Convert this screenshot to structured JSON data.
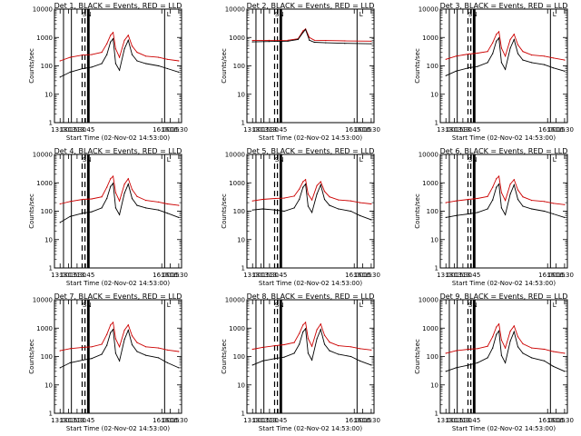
{
  "figure": {
    "background": "#ffffff",
    "axis_color": "#000000"
  },
  "chart_data": [
    {
      "type": "line",
      "panel": "det1",
      "title": "Det 1, BLACK = Events, RED = LLD",
      "xlabel": "Start Time (02-Nov-02 14:53:00)",
      "ylabel": "Counts/sec",
      "x_tick_labels": [
        "13:00",
        "13:15",
        "13:30",
        "13:45",
        "16:00",
        "16:15",
        "16:30"
      ],
      "y_tick_labels": [
        "1",
        "10",
        "100",
        "1000",
        "10000"
      ],
      "y_scale": "log",
      "ylim": [
        1,
        10000
      ],
      "markers": [
        "S",
        "N",
        "L"
      ],
      "series": [
        {
          "color": "#cc0000",
          "x": [
            "14:57",
            "15:05",
            "15:15",
            "15:22",
            "15:30",
            "15:34",
            "15:37",
            "15:39",
            "15:41",
            "15:44",
            "15:48",
            "15:51",
            "15:54",
            "15:58",
            "16:05",
            "16:15",
            "16:22",
            "16:31"
          ],
          "values": [
            150,
            200,
            240,
            250,
            300,
            600,
            1200,
            1500,
            400,
            200,
            800,
            1200,
            500,
            300,
            220,
            200,
            170,
            150
          ]
        },
        {
          "color": "#000000",
          "x": [
            "14:57",
            "15:05",
            "15:15",
            "15:22",
            "15:30",
            "15:34",
            "15:37",
            "15:39",
            "15:41",
            "15:44",
            "15:48",
            "15:51",
            "15:54",
            "15:58",
            "16:05",
            "16:15",
            "16:22",
            "16:31"
          ],
          "values": [
            40,
            60,
            80,
            90,
            120,
            250,
            700,
            900,
            120,
            70,
            400,
            800,
            250,
            150,
            120,
            100,
            80,
            60
          ]
        }
      ]
    },
    {
      "type": "line",
      "panel": "det2",
      "title": "Det 2, BLACK = Events, RED = LLD",
      "xlabel": "Start Time (02-Nov-02 14:53:00)",
      "ylabel": "Counts/sec",
      "x_tick_labels": [
        "13:00",
        "13:15",
        "13:30",
        "13:45",
        "16:00",
        "16:15",
        "16:30"
      ],
      "y_tick_labels": [
        "1",
        "10",
        "100",
        "1000",
        "10000"
      ],
      "y_scale": "log",
      "ylim": [
        1,
        10000
      ],
      "markers": [
        "S",
        "N",
        "L"
      ],
      "series": [
        {
          "color": "#cc0000",
          "x": [
            "14:57",
            "15:10",
            "15:25",
            "15:33",
            "15:37",
            "15:39",
            "15:42",
            "15:46",
            "15:55",
            "16:10",
            "16:31"
          ],
          "values": [
            780,
            790,
            800,
            900,
            1700,
            2000,
            1000,
            800,
            780,
            760,
            740
          ]
        },
        {
          "color": "#000000",
          "x": [
            "14:57",
            "15:10",
            "15:25",
            "15:33",
            "15:37",
            "15:39",
            "15:42",
            "15:46",
            "15:55",
            "16:10",
            "16:31"
          ],
          "values": [
            700,
            720,
            740,
            850,
            1500,
            1900,
            800,
            680,
            650,
            620,
            600
          ]
        }
      ]
    },
    {
      "type": "line",
      "panel": "det3",
      "title": "Det 3, BLACK = Events, RED = LLD",
      "xlabel": "Start Time (02-Nov-02 14:53:00)",
      "ylabel": "Counts/sec",
      "x_tick_labels": [
        "13:00",
        "13:15",
        "13:30",
        "13:45",
        "16:00",
        "16:15",
        "16:30"
      ],
      "y_tick_labels": [
        "1",
        "10",
        "100",
        "1000",
        "10000"
      ],
      "y_scale": "log",
      "ylim": [
        1,
        10000
      ],
      "markers": [
        "S",
        "N",
        "L"
      ],
      "series": [
        {
          "color": "#cc0000",
          "x": [
            "14:57",
            "15:05",
            "15:15",
            "15:22",
            "15:30",
            "15:34",
            "15:37",
            "15:39",
            "15:41",
            "15:44",
            "15:48",
            "15:51",
            "15:54",
            "15:58",
            "16:05",
            "16:15",
            "16:22",
            "16:31"
          ],
          "values": [
            170,
            220,
            260,
            280,
            320,
            650,
            1300,
            1600,
            420,
            220,
            850,
            1300,
            550,
            320,
            240,
            220,
            190,
            160
          ]
        },
        {
          "color": "#000000",
          "x": [
            "14:57",
            "15:05",
            "15:15",
            "15:22",
            "15:30",
            "15:34",
            "15:37",
            "15:39",
            "15:41",
            "15:44",
            "15:48",
            "15:51",
            "15:54",
            "15:58",
            "16:05",
            "16:15",
            "16:22",
            "16:31"
          ],
          "values": [
            45,
            65,
            85,
            95,
            130,
            270,
            750,
            950,
            130,
            75,
            420,
            850,
            270,
            160,
            130,
            110,
            85,
            65
          ]
        }
      ]
    },
    {
      "type": "line",
      "panel": "det4",
      "title": "Det 4, BLACK = Events, RED = LLD",
      "xlabel": "Start Time (02-Nov-02 14:53:00)",
      "ylabel": "Counts/sec",
      "x_tick_labels": [
        "13:00",
        "13:15",
        "13:30",
        "13:45",
        "16:00",
        "16:15",
        "16:30"
      ],
      "y_tick_labels": [
        "1",
        "10",
        "100",
        "1000",
        "10000"
      ],
      "y_scale": "log",
      "ylim": [
        1,
        10000
      ],
      "markers": [
        "S",
        "N",
        "L"
      ],
      "series": [
        {
          "color": "#cc0000",
          "x": [
            "14:57",
            "15:05",
            "15:15",
            "15:22",
            "15:30",
            "15:34",
            "15:37",
            "15:39",
            "15:41",
            "15:44",
            "15:48",
            "15:51",
            "15:54",
            "15:58",
            "16:05",
            "16:15",
            "16:22",
            "16:31"
          ],
          "values": [
            180,
            220,
            260,
            270,
            320,
            700,
            1400,
            1700,
            450,
            230,
            900,
            1400,
            580,
            330,
            240,
            210,
            180,
            160
          ]
        },
        {
          "color": "#000000",
          "x": [
            "14:57",
            "15:05",
            "15:15",
            "15:22",
            "15:30",
            "15:34",
            "15:37",
            "15:39",
            "15:41",
            "15:44",
            "15:48",
            "15:51",
            "15:54",
            "15:58",
            "16:05",
            "16:15",
            "16:22",
            "16:31"
          ],
          "values": [
            40,
            65,
            85,
            95,
            130,
            280,
            750,
            950,
            130,
            75,
            430,
            900,
            280,
            160,
            130,
            110,
            85,
            60
          ]
        }
      ]
    },
    {
      "type": "line",
      "panel": "det5",
      "title": "Det 5, BLACK = Events, RED = LLD",
      "xlabel": "Start Time (02-Nov-02 14:53:00)",
      "ylabel": "Counts/sec",
      "x_tick_labels": [
        "13:00",
        "13:15",
        "13:30",
        "13:45",
        "16:00",
        "16:15",
        "16:30"
      ],
      "y_tick_labels": [
        "1",
        "10",
        "100",
        "1000",
        "10000"
      ],
      "y_scale": "log",
      "ylim": [
        1,
        10000
      ],
      "markers": [
        "S",
        "N",
        "L"
      ],
      "series": [
        {
          "color": "#cc0000",
          "x": [
            "14:57",
            "15:05",
            "15:15",
            "15:22",
            "15:30",
            "15:34",
            "15:37",
            "15:39",
            "15:41",
            "15:44",
            "15:48",
            "15:51",
            "15:54",
            "15:58",
            "16:05",
            "16:15",
            "16:22",
            "16:31"
          ],
          "values": [
            230,
            260,
            280,
            290,
            340,
            600,
            1100,
            1300,
            400,
            250,
            800,
            1100,
            500,
            320,
            250,
            230,
            200,
            180
          ]
        },
        {
          "color": "#000000",
          "x": [
            "14:57",
            "15:05",
            "15:15",
            "15:22",
            "15:30",
            "15:34",
            "15:37",
            "15:39",
            "15:41",
            "15:44",
            "15:48",
            "15:51",
            "15:54",
            "15:58",
            "16:05",
            "16:15",
            "16:22",
            "16:31"
          ],
          "values": [
            110,
            120,
            110,
            100,
            130,
            260,
            700,
            900,
            150,
            90,
            400,
            850,
            260,
            160,
            120,
            100,
            70,
            50
          ]
        }
      ]
    },
    {
      "type": "line",
      "panel": "det6",
      "title": "Det 6, BLACK = Events, RED = LLD",
      "xlabel": "Start Time (02-Nov-02 14:53:00)",
      "ylabel": "Counts/sec",
      "x_tick_labels": [
        "13:00",
        "13:15",
        "13:30",
        "13:45",
        "16:00",
        "16:15",
        "16:30"
      ],
      "y_tick_labels": [
        "1",
        "10",
        "100",
        "1000",
        "10000"
      ],
      "y_scale": "log",
      "ylim": [
        1,
        10000
      ],
      "markers": [
        "S",
        "N",
        "L"
      ],
      "series": [
        {
          "color": "#cc0000",
          "x": [
            "14:57",
            "15:05",
            "15:15",
            "15:22",
            "15:30",
            "15:34",
            "15:37",
            "15:39",
            "15:41",
            "15:44",
            "15:48",
            "15:51",
            "15:54",
            "15:58",
            "16:05",
            "16:15",
            "16:22",
            "16:31"
          ],
          "values": [
            200,
            230,
            260,
            280,
            330,
            700,
            1400,
            1700,
            450,
            240,
            900,
            1300,
            560,
            320,
            240,
            220,
            190,
            170
          ]
        },
        {
          "color": "#000000",
          "x": [
            "14:57",
            "15:05",
            "15:15",
            "15:22",
            "15:30",
            "15:34",
            "15:37",
            "15:39",
            "15:41",
            "15:44",
            "15:48",
            "15:51",
            "15:54",
            "15:58",
            "16:05",
            "16:15",
            "16:22",
            "16:31"
          ],
          "values": [
            60,
            70,
            80,
            90,
            120,
            250,
            700,
            900,
            130,
            75,
            400,
            850,
            260,
            150,
            120,
            100,
            80,
            60
          ]
        }
      ]
    },
    {
      "type": "line",
      "panel": "det7",
      "title": "Det 7, BLACK = Events, RED = LLD",
      "xlabel": "Start Time (02-Nov-02 14:53:00)",
      "ylabel": "Counts/sec",
      "x_tick_labels": [
        "13:00",
        "13:15",
        "13:30",
        "13:45",
        "16:00",
        "16:15",
        "16:30"
      ],
      "y_tick_labels": [
        "1",
        "10",
        "100",
        "1000",
        "10000"
      ],
      "y_scale": "log",
      "ylim": [
        1,
        10000
      ],
      "markers": [
        "S",
        "N",
        "L"
      ],
      "series": [
        {
          "color": "#cc0000",
          "x": [
            "14:57",
            "15:05",
            "15:15",
            "15:22",
            "15:30",
            "15:34",
            "15:37",
            "15:39",
            "15:41",
            "15:44",
            "15:48",
            "15:51",
            "15:54",
            "15:58",
            "16:05",
            "16:15",
            "16:22",
            "16:31"
          ],
          "values": [
            160,
            190,
            210,
            220,
            270,
            600,
            1300,
            1600,
            420,
            220,
            850,
            1300,
            540,
            310,
            220,
            200,
            170,
            150
          ]
        },
        {
          "color": "#000000",
          "x": [
            "14:57",
            "15:05",
            "15:15",
            "15:22",
            "15:30",
            "15:34",
            "15:37",
            "15:39",
            "15:41",
            "15:44",
            "15:48",
            "15:51",
            "15:54",
            "15:58",
            "16:05",
            "16:15",
            "16:22",
            "16:31"
          ],
          "values": [
            40,
            60,
            75,
            85,
            120,
            250,
            700,
            900,
            130,
            70,
            400,
            850,
            260,
            150,
            110,
            90,
            60,
            40
          ]
        }
      ]
    },
    {
      "type": "line",
      "panel": "det8",
      "title": "Det 8, BLACK = Events, RED = LLD",
      "xlabel": "Start Time (02-Nov-02 14:53:00)",
      "ylabel": "Counts/sec",
      "x_tick_labels": [
        "13:00",
        "13:15",
        "13:30",
        "13:45",
        "16:00",
        "16:15",
        "16:30"
      ],
      "y_tick_labels": [
        "1",
        "10",
        "100",
        "1000",
        "10000"
      ],
      "y_scale": "log",
      "ylim": [
        1,
        10000
      ],
      "markers": [
        "S",
        "N",
        "L"
      ],
      "series": [
        {
          "color": "#cc0000",
          "x": [
            "14:57",
            "15:05",
            "15:15",
            "15:22",
            "15:30",
            "15:34",
            "15:37",
            "15:39",
            "15:41",
            "15:44",
            "15:48",
            "15:51",
            "15:54",
            "15:58",
            "16:05",
            "16:15",
            "16:22",
            "16:31"
          ],
          "values": [
            180,
            210,
            240,
            260,
            310,
            650,
            1300,
            1600,
            430,
            230,
            880,
            1400,
            560,
            320,
            240,
            220,
            190,
            170
          ]
        },
        {
          "color": "#000000",
          "x": [
            "14:57",
            "15:05",
            "15:15",
            "15:22",
            "15:30",
            "15:34",
            "15:37",
            "15:39",
            "15:41",
            "15:44",
            "15:48",
            "15:51",
            "15:54",
            "15:58",
            "16:05",
            "16:15",
            "16:22",
            "16:31"
          ],
          "values": [
            50,
            70,
            85,
            95,
            130,
            270,
            750,
            950,
            130,
            75,
            420,
            900,
            270,
            160,
            120,
            100,
            70,
            50
          ]
        }
      ]
    },
    {
      "type": "line",
      "panel": "det9",
      "title": "Det 9, BLACK = Events, RED = LLD",
      "xlabel": "Start Time (02-Nov-02 14:53:00)",
      "ylabel": "Counts/sec",
      "x_tick_labels": [
        "13:00",
        "13:15",
        "13:30",
        "13:45",
        "16:00",
        "16:15",
        "16:30"
      ],
      "y_tick_labels": [
        "1",
        "10",
        "100",
        "1000",
        "10000"
      ],
      "y_scale": "log",
      "ylim": [
        1,
        10000
      ],
      "markers": [
        "S",
        "N",
        "L"
      ],
      "series": [
        {
          "color": "#cc0000",
          "x": [
            "14:57",
            "15:05",
            "15:15",
            "15:22",
            "15:30",
            "15:34",
            "15:37",
            "15:39",
            "15:41",
            "15:44",
            "15:48",
            "15:51",
            "15:54",
            "15:58",
            "16:05",
            "16:15",
            "16:22",
            "16:31"
          ],
          "values": [
            130,
            160,
            180,
            190,
            230,
            500,
            1100,
            1400,
            380,
            200,
            780,
            1200,
            500,
            280,
            200,
            180,
            150,
            130
          ]
        },
        {
          "color": "#000000",
          "x": [
            "14:57",
            "15:05",
            "15:15",
            "15:22",
            "15:30",
            "15:34",
            "15:37",
            "15:39",
            "15:41",
            "15:44",
            "15:48",
            "15:51",
            "15:54",
            "15:58",
            "16:05",
            "16:15",
            "16:22",
            "16:31"
          ],
          "values": [
            30,
            40,
            50,
            60,
            90,
            200,
            600,
            800,
            110,
            60,
            350,
            750,
            220,
            130,
            90,
            70,
            45,
            30
          ]
        }
      ]
    }
  ]
}
